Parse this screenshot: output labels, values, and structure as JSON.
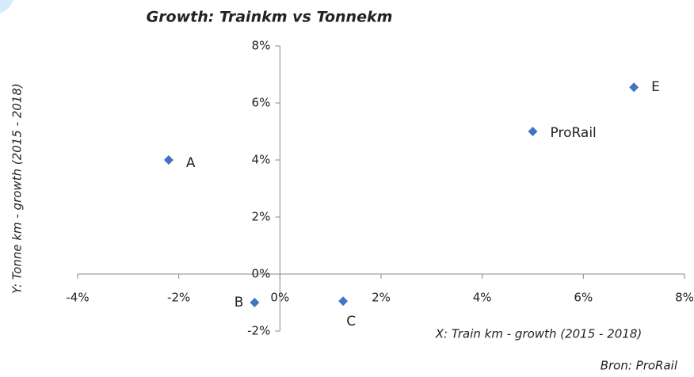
{
  "chart_data": {
    "type": "scatter",
    "title": "Growth: Trainkm vs Tonnekm",
    "x_label": "X: Train km - growth (2015 - 2018)",
    "y_label": "Y: Tonne km - growth (2015 - 2018)",
    "annotation": "Bron: ProRail",
    "point_labels": [
      "A",
      "B",
      "C",
      "ProRail",
      "E"
    ],
    "x": [
      -2.2,
      -0.5,
      1.25,
      5.0,
      7.0
    ],
    "values": [
      4.0,
      -1.0,
      -0.95,
      5.0,
      6.55
    ],
    "color": "#4472c4",
    "xlim": [
      -4,
      8
    ],
    "ylim": [
      -2,
      8
    ],
    "xticks": [
      {
        "value": -4,
        "label": "-4%"
      },
      {
        "value": -2,
        "label": "-2%"
      },
      {
        "value": 0,
        "label": "0%"
      },
      {
        "value": 2,
        "label": "2%"
      },
      {
        "value": 4,
        "label": "4%"
      },
      {
        "value": 6,
        "label": "6%"
      },
      {
        "value": 8,
        "label": "8%"
      }
    ],
    "yticks": [
      {
        "value": -2,
        "label": "-2%"
      },
      {
        "value": 0,
        "label": "0%"
      },
      {
        "value": 2,
        "label": "2%"
      },
      {
        "value": 4,
        "label": "4%"
      },
      {
        "value": 6,
        "label": "6%"
      },
      {
        "value": 8,
        "label": "8%"
      }
    ]
  }
}
